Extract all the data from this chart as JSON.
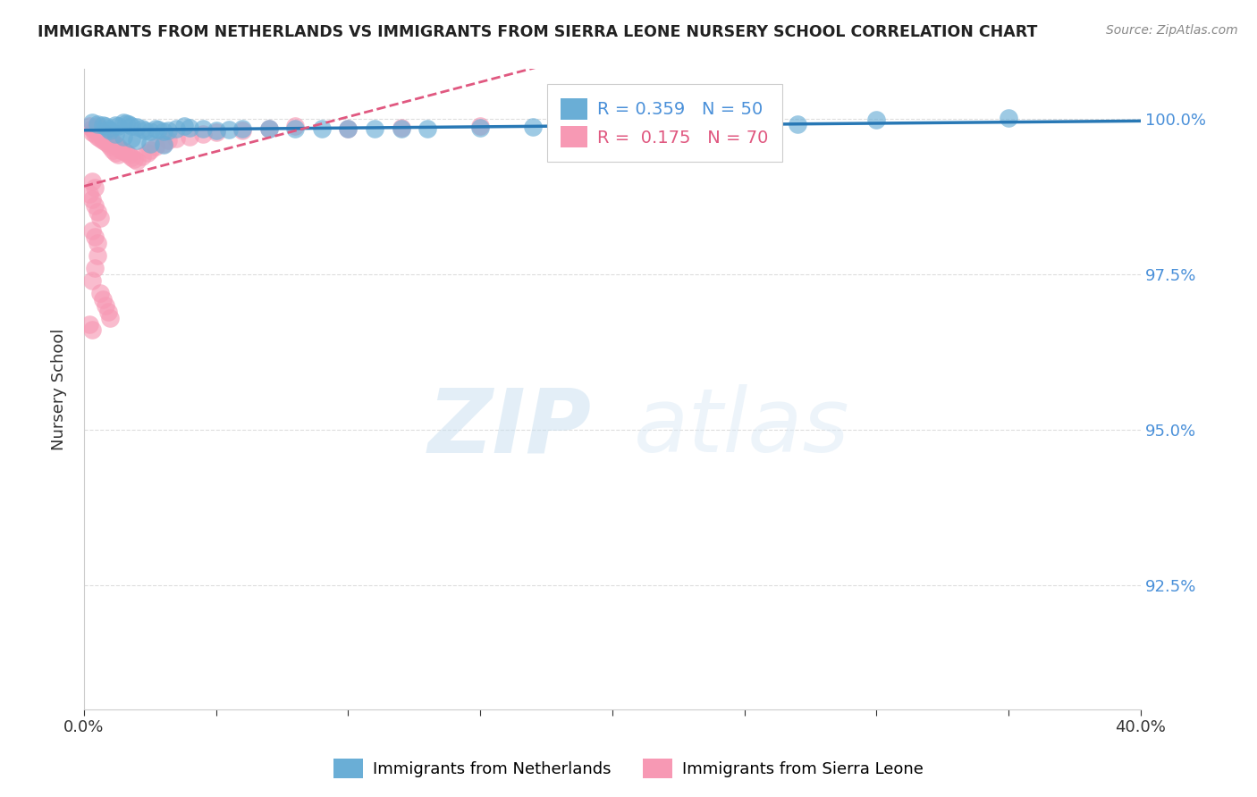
{
  "title": "IMMIGRANTS FROM NETHERLANDS VS IMMIGRANTS FROM SIERRA LEONE NURSERY SCHOOL CORRELATION CHART",
  "source": "Source: ZipAtlas.com",
  "ylabel": "Nursery School",
  "ytick_labels": [
    "100.0%",
    "97.5%",
    "95.0%",
    "92.5%"
  ],
  "ytick_values": [
    1.0,
    0.975,
    0.95,
    0.925
  ],
  "xlim": [
    0.0,
    0.4
  ],
  "ylim": [
    0.905,
    1.008
  ],
  "netherlands_R": 0.359,
  "netherlands_N": 50,
  "sierraleone_R": 0.175,
  "sierraleone_N": 70,
  "netherlands_color": "#6aaed6",
  "sierraleone_color": "#f799b4",
  "nl_line_color": "#2878b5",
  "sl_line_color": "#e05880",
  "netherlands_x": [
    0.003,
    0.005,
    0.007,
    0.008,
    0.009,
    0.01,
    0.012,
    0.013,
    0.015,
    0.016,
    0.017,
    0.018,
    0.02,
    0.022,
    0.023,
    0.025,
    0.027,
    0.028,
    0.03,
    0.032,
    0.035,
    0.038,
    0.04,
    0.045,
    0.05,
    0.055,
    0.06,
    0.07,
    0.08,
    0.09,
    0.1,
    0.11,
    0.12,
    0.13,
    0.15,
    0.17,
    0.19,
    0.21,
    0.23,
    0.25,
    0.012,
    0.015,
    0.018,
    0.02,
    0.025,
    0.03,
    0.35,
    0.3,
    0.27,
    0.18
  ],
  "netherlands_y": [
    0.9995,
    0.9992,
    0.999,
    0.9988,
    0.9985,
    0.9982,
    0.999,
    0.9988,
    0.9995,
    0.9993,
    0.9991,
    0.9989,
    0.9987,
    0.9985,
    0.9982,
    0.998,
    0.9985,
    0.9983,
    0.998,
    0.9982,
    0.9985,
    0.9988,
    0.9986,
    0.9984,
    0.9982,
    0.9983,
    0.9984,
    0.9985,
    0.9984,
    0.9985,
    0.9984,
    0.9985,
    0.9984,
    0.9985,
    0.9986,
    0.9987,
    0.9986,
    0.9987,
    0.9988,
    0.9988,
    0.9975,
    0.9972,
    0.9968,
    0.9965,
    0.996,
    0.9958,
    1.0002,
    0.9998,
    0.9992,
    0.999
  ],
  "sierraleone_x": [
    0.002,
    0.003,
    0.004,
    0.005,
    0.005,
    0.006,
    0.006,
    0.007,
    0.007,
    0.008,
    0.008,
    0.009,
    0.009,
    0.01,
    0.01,
    0.011,
    0.011,
    0.012,
    0.012,
    0.013,
    0.013,
    0.014,
    0.015,
    0.016,
    0.017,
    0.018,
    0.019,
    0.02,
    0.022,
    0.024,
    0.025,
    0.027,
    0.03,
    0.032,
    0.035,
    0.04,
    0.045,
    0.05,
    0.06,
    0.07,
    0.08,
    0.1,
    0.12,
    0.15,
    0.003,
    0.004,
    0.005,
    0.006,
    0.007,
    0.008,
    0.003,
    0.004,
    0.005,
    0.006,
    0.007,
    0.008,
    0.009,
    0.01,
    0.002,
    0.003,
    0.003,
    0.004,
    0.005,
    0.003,
    0.004,
    0.002,
    0.003,
    0.004,
    0.005,
    0.006
  ],
  "sierraleone_y": [
    0.9988,
    0.9985,
    0.9982,
    0.998,
    0.9988,
    0.9975,
    0.9985,
    0.997,
    0.9978,
    0.9965,
    0.9975,
    0.996,
    0.9972,
    0.9955,
    0.9968,
    0.995,
    0.9962,
    0.9945,
    0.9958,
    0.9942,
    0.9955,
    0.995,
    0.9948,
    0.9945,
    0.9942,
    0.9938,
    0.9935,
    0.9932,
    0.994,
    0.9945,
    0.995,
    0.9955,
    0.996,
    0.9965,
    0.9968,
    0.9972,
    0.9975,
    0.9978,
    0.9982,
    0.9985,
    0.9988,
    0.9984,
    0.9986,
    0.9988,
    0.9978,
    0.9975,
    0.9972,
    0.9968,
    0.9965,
    0.9962,
    0.974,
    0.976,
    0.978,
    0.972,
    0.971,
    0.97,
    0.969,
    0.968,
    0.967,
    0.966,
    0.982,
    0.981,
    0.98,
    0.99,
    0.989,
    0.988,
    0.987,
    0.986,
    0.985,
    0.984
  ],
  "watermark_zip": "ZIP",
  "watermark_atlas": "atlas",
  "bottom_legend_labels": [
    "Immigrants from Netherlands",
    "Immigrants from Sierra Leone"
  ]
}
